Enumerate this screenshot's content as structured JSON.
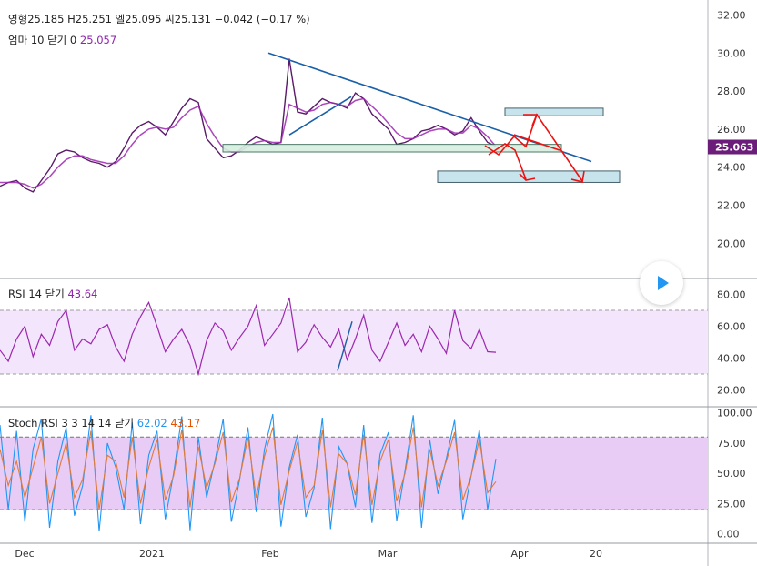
{
  "legend": {
    "open_label": "영",
    "open_marker": "형",
    "open_value": "25.185",
    "high_label": "H",
    "high_value": "25.251",
    "low_label": "엘",
    "low_value": "25.095",
    "close_label": "씨",
    "close_value": "25.131",
    "change": "−0.042",
    "change_pct": "(−0.17 %)",
    "ema_label": "엄마 10 닫기 0",
    "ema_value": "25.057",
    "rsi_label": "RSI 14 닫기",
    "rsi_value": "43.64",
    "stoch_label": "Stoch RSI 3 3 14 14 닫기",
    "stoch_k_value": "62.02",
    "stoch_d_value": "43.17"
  },
  "price_tag": "25.063",
  "colors": {
    "price": "#5b1a6a",
    "ema": "#9c27b0",
    "trend": "#1a5fa8",
    "rsi": "#9c27b0",
    "stoch_k": "#2196f3",
    "stoch_d": "#e07b39",
    "arrows": "#ee1111",
    "boxes": "#c7e3ec"
  },
  "icons": {
    "play": "play-icon"
  },
  "chart_data": [
    {
      "type": "line",
      "title": "",
      "x_ticks": [
        "Dec",
        "2021",
        "Feb",
        "Mar",
        "Apr",
        "20"
      ],
      "y_ticks": [
        20,
        22,
        24,
        26,
        28,
        30,
        32
      ],
      "ylim": [
        18.2,
        32.5
      ],
      "current_price": 25.063,
      "series": [
        {
          "values": [
            23.0,
            23.2,
            23.3,
            22.9,
            22.7,
            23.3,
            23.9,
            24.7,
            24.9,
            24.8,
            24.5,
            24.3,
            24.2,
            24.0,
            24.3,
            25.0,
            25.8,
            26.2,
            26.4,
            26.1,
            25.7,
            26.4,
            27.1,
            27.6,
            27.4,
            25.5,
            25.0,
            24.5,
            24.6,
            24.9,
            25.3,
            25.6,
            25.4,
            25.2,
            25.3,
            29.7,
            26.9,
            26.8,
            27.2,
            27.6,
            27.4,
            27.3,
            27.1,
            27.9,
            27.6,
            26.8,
            26.4,
            26.0,
            25.2,
            25.3,
            25.5,
            25.9,
            26.0,
            26.2,
            26.0,
            25.7,
            25.9,
            26.6,
            25.9,
            25.3,
            25.1
          ]
        },
        {
          "values": [
            23.2,
            23.2,
            23.2,
            23.1,
            22.9,
            23.1,
            23.5,
            24.0,
            24.4,
            24.6,
            24.6,
            24.4,
            24.3,
            24.2,
            24.2,
            24.6,
            25.2,
            25.7,
            26.0,
            26.1,
            26.0,
            26.1,
            26.6,
            27.0,
            27.2,
            26.3,
            25.6,
            25.0,
            24.8,
            24.8,
            25.1,
            25.3,
            25.4,
            25.3,
            25.3,
            27.3,
            27.1,
            26.9,
            27.0,
            27.3,
            27.4,
            27.3,
            27.2,
            27.5,
            27.6,
            27.2,
            26.8,
            26.3,
            25.8,
            25.5,
            25.5,
            25.7,
            25.9,
            26.0,
            26.0,
            25.8,
            25.8,
            26.2,
            26.0,
            25.6,
            25.1
          ]
        }
      ],
      "annotations": {
        "trendlines": [
          [
            [
              "Feb",
              30.0
            ],
            [
              "Apr",
              24.3
            ]
          ],
          [
            [
              25.7
            ],
            [
              27.7
            ]
          ]
        ],
        "support_zone": [
          24.8,
          25.2
        ],
        "target_zones": [
          [
            26.7,
            27.1
          ],
          [
            23.2,
            23.8
          ]
        ]
      }
    },
    {
      "type": "line",
      "title": "RSI 14 닫기",
      "y_ticks": [
        20,
        40,
        60,
        80
      ],
      "ylim": [
        10,
        90
      ],
      "band": [
        30,
        70
      ],
      "series": [
        {
          "values": [
            45,
            38,
            52,
            60,
            41,
            55,
            48,
            63,
            70,
            45,
            52,
            49,
            58,
            61,
            47,
            38,
            55,
            66,
            75,
            60,
            44,
            52,
            58,
            48,
            30,
            51,
            62,
            57,
            45,
            53,
            60,
            73,
            48,
            55,
            62,
            78,
            44,
            50,
            61,
            53,
            47,
            58,
            39,
            52,
            67,
            45,
            38,
            50,
            62,
            48,
            55,
            44,
            60,
            52,
            43,
            70,
            51,
            46,
            58,
            44,
            43.64
          ]
        }
      ]
    },
    {
      "type": "line",
      "title": "Stoch RSI 3 3 14 14 닫기",
      "y_ticks": [
        0,
        25,
        50,
        75,
        100
      ],
      "ylim": [
        -7,
        105
      ],
      "band": [
        20,
        80
      ],
      "series": [
        {
          "values": [
            90,
            20,
            85,
            10,
            70,
            95,
            5,
            60,
            88,
            15,
            40,
            98,
            2,
            75,
            55,
            20,
            92,
            8,
            65,
            85,
            12,
            50,
            97,
            3,
            80,
            30,
            60,
            95,
            10,
            45,
            88,
            18,
            70,
            99,
            6,
            55,
            82,
            14,
            38,
            96,
            4,
            72,
            58,
            22,
            90,
            9,
            66,
            84,
            11,
            52,
            98,
            5,
            78,
            33,
            62,
            94,
            12,
            48,
            86,
            20,
            62.02
          ]
        },
        {
          "values": [
            70,
            40,
            60,
            30,
            55,
            80,
            25,
            50,
            75,
            30,
            45,
            85,
            20,
            65,
            60,
            30,
            80,
            25,
            55,
            78,
            28,
            48,
            86,
            22,
            72,
            38,
            58,
            84,
            26,
            46,
            80,
            30,
            64,
            88,
            24,
            52,
            76,
            30,
            40,
            86,
            22,
            66,
            58,
            32,
            82,
            24,
            60,
            78,
            27,
            50,
            88,
            22,
            70,
            40,
            60,
            84,
            28,
            48,
            78,
            34,
            43.17
          ]
        }
      ]
    }
  ]
}
